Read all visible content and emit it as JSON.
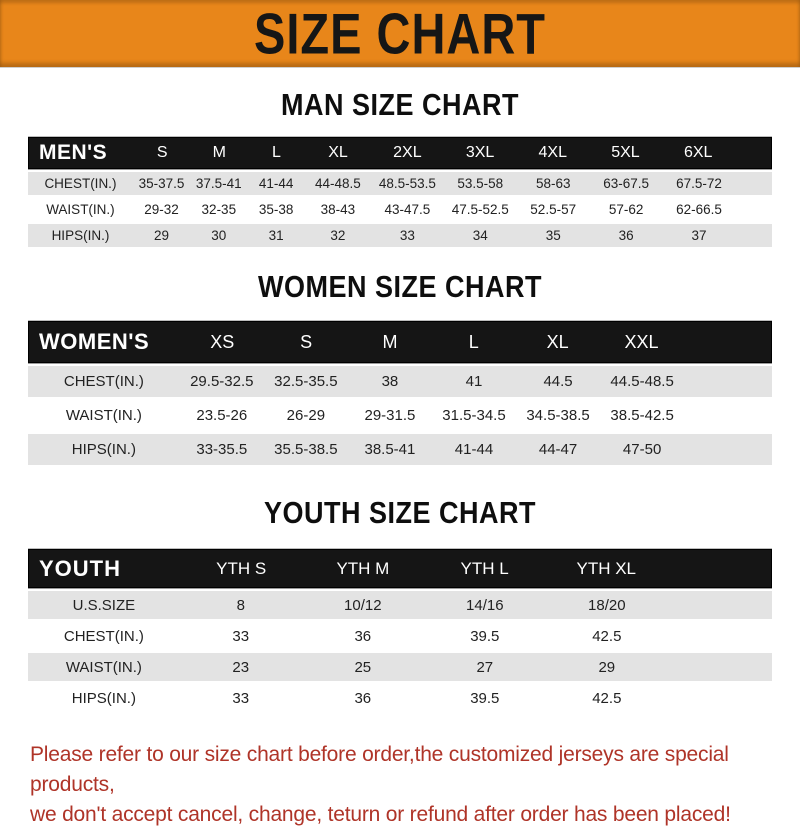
{
  "banner": {
    "title": "SIZE CHART",
    "bg_color": "#E8861A",
    "text_color": "#161616"
  },
  "colors": {
    "table_header_bg": "#151515",
    "table_header_text": "#ffffff",
    "row_stripe": "#E3E3E3",
    "disclaimer_text": "#AF3428"
  },
  "sections": [
    {
      "id": "men",
      "title": "MAN SIZE CHART",
      "header_label": "MEN'S",
      "columns": [
        "S",
        "M",
        "L",
        "XL",
        "2XL",
        "3XL",
        "4XL",
        "5XL",
        "6XL"
      ],
      "rows": [
        {
          "label": "CHEST(IN.)",
          "values": [
            "35-37.5",
            "37.5-41",
            "41-44",
            "44-48.5",
            "48.5-53.5",
            "53.5-58",
            "58-63",
            "63-67.5",
            "67.5-72"
          ]
        },
        {
          "label": "WAIST(IN.)",
          "values": [
            "29-32",
            "32-35",
            "35-38",
            "38-43",
            "43-47.5",
            "47.5-52.5",
            "52.5-57",
            "57-62",
            "62-66.5"
          ]
        },
        {
          "label": "HIPS(IN.)",
          "values": [
            "29",
            "30",
            "31",
            "32",
            "33",
            "34",
            "35",
            "36",
            "37"
          ]
        }
      ]
    },
    {
      "id": "women",
      "title": "WOMEN SIZE CHART",
      "header_label": "WOMEN'S",
      "columns": [
        "XS",
        "S",
        "M",
        "L",
        "XL",
        "XXL"
      ],
      "rows": [
        {
          "label": "CHEST(IN.)",
          "values": [
            "29.5-32.5",
            "32.5-35.5",
            "38",
            "41",
            "44.5",
            "44.5-48.5"
          ]
        },
        {
          "label": "WAIST(IN.)",
          "values": [
            "23.5-26",
            "26-29",
            "29-31.5",
            "31.5-34.5",
            "34.5-38.5",
            "38.5-42.5"
          ]
        },
        {
          "label": "HIPS(IN.)",
          "values": [
            "33-35.5",
            "35.5-38.5",
            "38.5-41",
            "41-44",
            "44-47",
            "47-50"
          ]
        }
      ]
    },
    {
      "id": "youth",
      "title": "YOUTH SIZE CHART",
      "header_label": "YOUTH",
      "columns": [
        "YTH S",
        "YTH M",
        "YTH L",
        "YTH XL"
      ],
      "rows": [
        {
          "label": "U.S.SIZE",
          "values": [
            "8",
            "10/12",
            "14/16",
            "18/20"
          ]
        },
        {
          "label": "CHEST(IN.)",
          "values": [
            "33",
            "36",
            "39.5",
            "42.5"
          ]
        },
        {
          "label": "WAIST(IN.)",
          "values": [
            "23",
            "25",
            "27",
            "29"
          ]
        },
        {
          "label": "HIPS(IN.)",
          "values": [
            "33",
            "36",
            "39.5",
            "42.5"
          ]
        }
      ]
    }
  ],
  "disclaimer": {
    "line1": "Please refer to our size chart before order,the customized jerseys are special products,",
    "line2": "we don't accept cancel, change, teturn or refund after order has been placed!"
  }
}
